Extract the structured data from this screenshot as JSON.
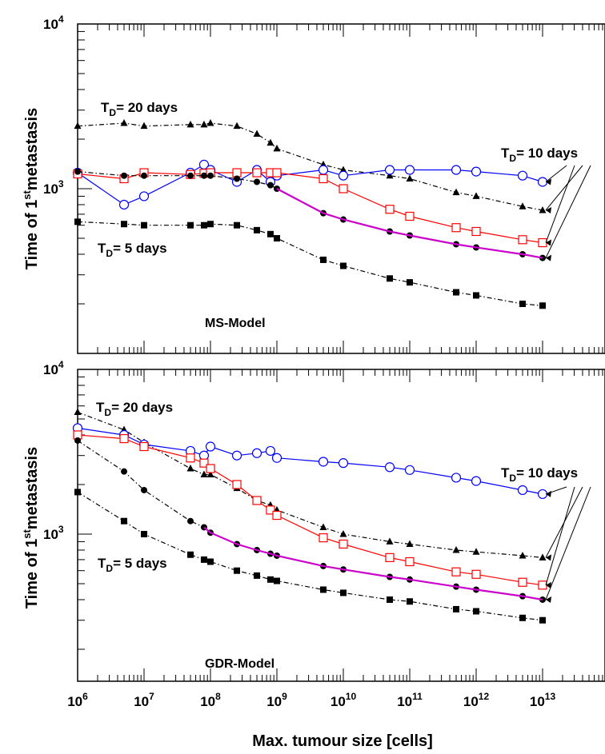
{
  "chart_data": [
    {
      "type": "line",
      "panel": "top",
      "model_label": "MS-Model",
      "xlabel": "",
      "ylabel": "Time of 1st metastasis",
      "ylabel_main": "Time of 1",
      "ylabel_sup": "st",
      "ylabel_rest": "metastasis",
      "xscale": "log",
      "yscale": "log",
      "xlim": [
        1000000.0,
        100000000000000.0
      ],
      "ylim": [
        150,
        10000
      ],
      "y_ticks": [
        {
          "value": 1000,
          "base": "10",
          "exp": "3"
        },
        {
          "value": 10000,
          "base": "10",
          "exp": "4"
        }
      ],
      "annotations": [
        {
          "text_main": "T",
          "text_sub": "D",
          "text_rest": "= 20 days"
        },
        {
          "text_main": "T",
          "text_sub": "D",
          "text_rest": "= 10 days"
        },
        {
          "text_main": "T",
          "text_sub": "D",
          "text_rest": "= 5 days"
        }
      ],
      "series": [
        {
          "color": "#000000",
          "marker": "triangle",
          "line": "dashdot",
          "x": [
            1000000.0,
            5000000.0,
            10000000.0,
            50000000.0,
            80000000.0,
            100000000.0,
            250000000.0,
            500000000.0,
            800000000.0,
            1000000000.0,
            5000000000.0,
            10000000000.0,
            50000000000.0,
            100000000000.0,
            500000000000.0,
            1000000000000.0,
            5000000000000.0,
            10000000000000.0
          ],
          "y": [
            2400,
            2500,
            2400,
            2450,
            2450,
            2500,
            2400,
            2150,
            1900,
            1750,
            1400,
            1300,
            1200,
            1150,
            950,
            900,
            780,
            740
          ]
        },
        {
          "color": "#0000ff",
          "marker": "open-circle",
          "line": "solid",
          "x": [
            1000000.0,
            5000000.0,
            10000000.0,
            50000000.0,
            80000000.0,
            100000000.0,
            250000000.0,
            500000000.0,
            800000000.0,
            1000000000.0,
            5000000000.0,
            10000000000.0,
            50000000000.0,
            100000000000.0,
            500000000000.0,
            1000000000000.0,
            5000000000000.0,
            10000000000000.0
          ],
          "y": [
            1250,
            800,
            900,
            1250,
            1400,
            1300,
            1100,
            1300,
            1100,
            1200,
            1300,
            1200,
            1300,
            1300,
            1300,
            1270,
            1200,
            1100
          ]
        },
        {
          "color": "#ff0000",
          "marker": "open-square",
          "line": "solid",
          "x": [
            1000000.0,
            5000000.0,
            10000000.0,
            50000000.0,
            80000000.0,
            100000000.0,
            250000000.0,
            500000000.0,
            800000000.0,
            1000000000.0,
            5000000000.0,
            10000000000.0,
            50000000000.0,
            100000000000.0,
            500000000000.0,
            1000000000000.0,
            5000000000000.0,
            10000000000000.0
          ],
          "y": [
            1230,
            1150,
            1250,
            1220,
            1240,
            1250,
            1250,
            1250,
            1250,
            1250,
            1150,
            1000,
            750,
            680,
            580,
            550,
            490,
            470
          ]
        },
        {
          "color": "#000000",
          "marker": "circle",
          "line": "dashdot",
          "x": [
            1000000.0,
            5000000.0,
            10000000.0,
            50000000.0,
            80000000.0,
            100000000.0,
            250000000.0,
            500000000.0,
            800000000.0,
            1000000000.0,
            5000000000.0,
            10000000000.0,
            50000000000.0,
            100000000000.0,
            500000000000.0,
            1000000000000.0,
            5000000000000.0,
            10000000000000.0
          ],
          "y": [
            1270,
            1200,
            1200,
            1200,
            1200,
            1200,
            1150,
            1100,
            1050,
            1000,
            710,
            650,
            550,
            520,
            460,
            440,
            400,
            380
          ]
        },
        {
          "color": "#cc00cc",
          "marker": "none",
          "line": "solid",
          "x": [
            1000000000.0,
            5000000000.0,
            10000000000.0,
            50000000000.0,
            100000000000.0,
            500000000000.0,
            1000000000000.0,
            5000000000000.0,
            10000000000000.0
          ],
          "y": [
            1000,
            710,
            650,
            550,
            520,
            460,
            440,
            400,
            380
          ]
        },
        {
          "color": "#000000",
          "marker": "square",
          "line": "dashdot",
          "x": [
            1000000.0,
            5000000.0,
            10000000.0,
            50000000.0,
            80000000.0,
            100000000.0,
            250000000.0,
            500000000.0,
            800000000.0,
            1000000000.0,
            5000000000.0,
            10000000000.0,
            50000000000.0,
            100000000000.0,
            500000000000.0,
            1000000000000.0,
            5000000000000.0,
            10000000000000.0
          ],
          "y": [
            630,
            610,
            600,
            600,
            600,
            610,
            600,
            560,
            530,
            500,
            370,
            340,
            285,
            270,
            235,
            225,
            200,
            195
          ]
        }
      ]
    },
    {
      "type": "line",
      "panel": "bottom",
      "model_label": "GDR-Model",
      "xlabel": "Max. tumour size [cells]",
      "ylabel": "Time of 1st metastasis",
      "ylabel_main": "Time of 1",
      "ylabel_sup": "st",
      "ylabel_rest": "metastasis",
      "xscale": "log",
      "yscale": "log",
      "xlim": [
        1000000.0,
        100000000000000.0
      ],
      "ylim": [
        150,
        10000
      ],
      "x_ticks": [
        {
          "value": 1000000.0,
          "base": "10",
          "exp": "6"
        },
        {
          "value": 10000000.0,
          "base": "10",
          "exp": "7"
        },
        {
          "value": 100000000.0,
          "base": "10",
          "exp": "8"
        },
        {
          "value": 1000000000.0,
          "base": "10",
          "exp": "9"
        },
        {
          "value": 10000000000.0,
          "base": "10",
          "exp": "10"
        },
        {
          "value": 100000000000.0,
          "base": "10",
          "exp": "11"
        },
        {
          "value": 1000000000000.0,
          "base": "10",
          "exp": "12"
        },
        {
          "value": 10000000000000.0,
          "base": "10",
          "exp": "13"
        }
      ],
      "y_ticks": [
        {
          "value": 1000,
          "base": "10",
          "exp": "3"
        },
        {
          "value": 10000,
          "base": "10",
          "exp": "4"
        }
      ],
      "annotations": [
        {
          "text_main": "T",
          "text_sub": "D",
          "text_rest": "= 20 days"
        },
        {
          "text_main": "T",
          "text_sub": "D",
          "text_rest": "= 10 days"
        },
        {
          "text_main": "T",
          "text_sub": "D",
          "text_rest": "= 5 days"
        }
      ],
      "series": [
        {
          "color": "#000000",
          "marker": "triangle",
          "line": "dashdot",
          "x": [
            1000000.0,
            5000000.0,
            10000000.0,
            50000000.0,
            80000000.0,
            100000000.0,
            250000000.0,
            500000000.0,
            800000000.0,
            1000000000.0,
            5000000000.0,
            10000000000.0,
            50000000000.0,
            100000000000.0,
            500000000000.0,
            1000000000000.0,
            5000000000000.0,
            10000000000000.0
          ],
          "y": [
            5500,
            4300,
            3600,
            2500,
            2300,
            2300,
            1900,
            1600,
            1500,
            1400,
            1100,
            1000,
            900,
            870,
            800,
            780,
            740,
            720
          ]
        },
        {
          "color": "#0000ff",
          "marker": "open-circle",
          "line": "solid",
          "x": [
            1000000.0,
            5000000.0,
            10000000.0,
            50000000.0,
            80000000.0,
            100000000.0,
            250000000.0,
            500000000.0,
            800000000.0,
            1000000000.0,
            5000000000.0,
            10000000000.0,
            50000000000.0,
            100000000000.0,
            500000000000.0,
            1000000000000.0,
            5000000000000.0,
            10000000000000.0
          ],
          "y": [
            4400,
            4000,
            3500,
            3200,
            3000,
            3400,
            3000,
            3100,
            3200,
            2900,
            2750,
            2700,
            2550,
            2450,
            2200,
            2100,
            1850,
            1750
          ]
        },
        {
          "color": "#ff0000",
          "marker": "open-square",
          "line": "solid",
          "x": [
            1000000.0,
            5000000.0,
            10000000.0,
            50000000.0,
            80000000.0,
            100000000.0,
            250000000.0,
            500000000.0,
            800000000.0,
            1000000000.0,
            5000000000.0,
            10000000000.0,
            50000000000.0,
            100000000000.0,
            500000000000.0,
            1000000000000.0,
            5000000000000.0,
            10000000000000.0
          ],
          "y": [
            4000,
            3800,
            3400,
            2900,
            2700,
            2500,
            2000,
            1600,
            1400,
            1300,
            950,
            870,
            720,
            680,
            590,
            570,
            510,
            490
          ]
        },
        {
          "color": "#000000",
          "marker": "circle",
          "line": "dashdot",
          "x": [
            1000000.0,
            5000000.0,
            10000000.0,
            50000000.0,
            80000000.0,
            100000000.0,
            250000000.0,
            500000000.0,
            800000000.0,
            1000000000.0,
            5000000000.0,
            10000000000.0,
            50000000000.0,
            100000000000.0,
            500000000000.0,
            1000000000000.0,
            5000000000000.0,
            10000000000000.0
          ],
          "y": [
            3700,
            2400,
            1850,
            1200,
            1100,
            1020,
            870,
            800,
            760,
            740,
            640,
            610,
            550,
            530,
            480,
            460,
            420,
            400
          ]
        },
        {
          "color": "#cc00cc",
          "marker": "none",
          "line": "solid",
          "x": [
            80000000.0,
            100000000.0,
            250000000.0,
            500000000.0,
            800000000.0,
            1000000000.0,
            5000000000.0,
            10000000000.0,
            50000000000.0,
            100000000000.0,
            500000000000.0,
            1000000000000.0,
            5000000000000.0,
            10000000000000.0
          ],
          "y": [
            1100,
            1020,
            870,
            800,
            760,
            740,
            640,
            610,
            550,
            530,
            480,
            460,
            420,
            400
          ]
        },
        {
          "color": "#000000",
          "marker": "square",
          "line": "dashdot",
          "x": [
            1000000.0,
            5000000.0,
            10000000.0,
            50000000.0,
            80000000.0,
            100000000.0,
            250000000.0,
            500000000.0,
            800000000.0,
            1000000000.0,
            5000000000.0,
            10000000000.0,
            50000000000.0,
            100000000000.0,
            500000000000.0,
            1000000000000.0,
            5000000000000.0,
            10000000000000.0
          ],
          "y": [
            1800,
            1200,
            1000,
            750,
            700,
            680,
            600,
            560,
            530,
            520,
            460,
            440,
            400,
            390,
            350,
            340,
            310,
            300
          ]
        }
      ]
    }
  ]
}
